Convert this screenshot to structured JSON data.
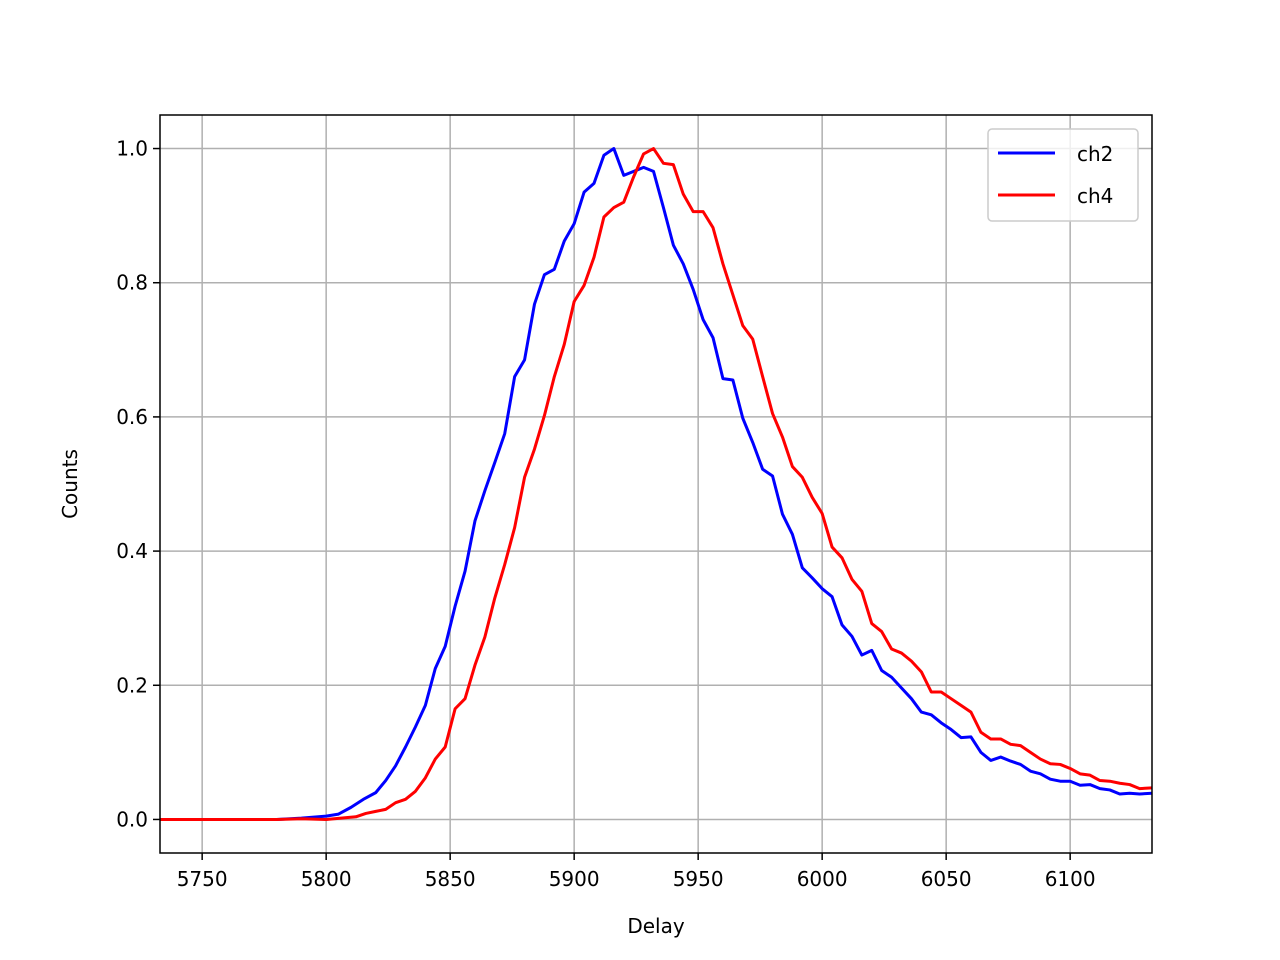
{
  "chart_data": {
    "type": "line",
    "title": "",
    "xlabel": "Delay",
    "ylabel": "Counts",
    "xlim": [
      5733,
      6133
    ],
    "ylim": [
      -0.05,
      1.05
    ],
    "xticks": [
      5750,
      5800,
      5850,
      5900,
      5950,
      6000,
      6050,
      6100
    ],
    "yticks": [
      0.0,
      0.2,
      0.4,
      0.6,
      0.8,
      1.0
    ],
    "xtick_labels": [
      "5750",
      "5800",
      "5850",
      "5900",
      "5950",
      "6000",
      "6050",
      "6100"
    ],
    "ytick_labels": [
      "0.0",
      "0.2",
      "0.4",
      "0.6",
      "0.8",
      "1.0"
    ],
    "grid": true,
    "legend_position": "top-right",
    "series": [
      {
        "name": "ch2",
        "color": "#0000ff",
        "x": [
          5733,
          5740,
          5750,
          5760,
          5770,
          5780,
          5790,
          5800,
          5805,
          5810,
          5815,
          5820,
          5824,
          5828,
          5832,
          5836,
          5840,
          5844,
          5848,
          5852,
          5856,
          5860,
          5864,
          5868,
          5872,
          5876,
          5880,
          5884,
          5888,
          5892,
          5896,
          5900,
          5904,
          5908,
          5912,
          5916,
          5920,
          5924,
          5928,
          5932,
          5936,
          5940,
          5944,
          5948,
          5952,
          5956,
          5960,
          5964,
          5968,
          5972,
          5976,
          5980,
          5984,
          5988,
          5992,
          5996,
          6000,
          6004,
          6008,
          6012,
          6016,
          6020,
          6024,
          6028,
          6032,
          6036,
          6040,
          6044,
          6048,
          6052,
          6056,
          6060,
          6064,
          6068,
          6072,
          6076,
          6080,
          6084,
          6088,
          6092,
          6096,
          6100,
          6104,
          6108,
          6112,
          6116,
          6120,
          6124,
          6128,
          6133
        ],
        "y": [
          0.0,
          0.0,
          0.0,
          0.0,
          0.0,
          0.0,
          0.002,
          0.005,
          0.008,
          0.018,
          0.03,
          0.04,
          0.058,
          0.08,
          0.108,
          0.138,
          0.17,
          0.225,
          0.258,
          0.318,
          0.37,
          0.445,
          0.49,
          0.532,
          0.575,
          0.66,
          0.685,
          0.768,
          0.812,
          0.82,
          0.862,
          0.888,
          0.935,
          0.948,
          0.99,
          1.0,
          0.96,
          0.966,
          0.972,
          0.966,
          0.912,
          0.856,
          0.828,
          0.79,
          0.745,
          0.718,
          0.657,
          0.655,
          0.598,
          0.562,
          0.522,
          0.512,
          0.455,
          0.425,
          0.375,
          0.36,
          0.344,
          0.332,
          0.29,
          0.273,
          0.245,
          0.252,
          0.222,
          0.212,
          0.196,
          0.18,
          0.16,
          0.156,
          0.144,
          0.134,
          0.122,
          0.123,
          0.1,
          0.088,
          0.093,
          0.087,
          0.082,
          0.072,
          0.068,
          0.06,
          0.057,
          0.057,
          0.051,
          0.052,
          0.046,
          0.044,
          0.038,
          0.039,
          0.038,
          0.039
        ]
      },
      {
        "name": "ch4",
        "color": "#ff0000",
        "x": [
          5733,
          5740,
          5750,
          5760,
          5770,
          5780,
          5790,
          5800,
          5806,
          5812,
          5816,
          5820,
          5824,
          5828,
          5832,
          5836,
          5840,
          5844,
          5848,
          5852,
          5856,
          5860,
          5864,
          5868,
          5872,
          5876,
          5880,
          5884,
          5888,
          5892,
          5896,
          5900,
          5904,
          5908,
          5912,
          5916,
          5920,
          5924,
          5928,
          5932,
          5936,
          5940,
          5944,
          5948,
          5952,
          5956,
          5960,
          5964,
          5968,
          5972,
          5976,
          5980,
          5984,
          5988,
          5992,
          5996,
          6000,
          6004,
          6008,
          6012,
          6016,
          6020,
          6024,
          6028,
          6032,
          6036,
          6040,
          6044,
          6048,
          6052,
          6056,
          6060,
          6064,
          6068,
          6072,
          6076,
          6080,
          6084,
          6088,
          6092,
          6096,
          6100,
          6104,
          6108,
          6112,
          6116,
          6120,
          6124,
          6128,
          6133
        ],
        "y": [
          0.0,
          0.0,
          0.0,
          0.0,
          0.0,
          0.0,
          0.001,
          0.0,
          0.002,
          0.004,
          0.009,
          0.012,
          0.015,
          0.025,
          0.03,
          0.042,
          0.062,
          0.09,
          0.108,
          0.165,
          0.18,
          0.23,
          0.272,
          0.33,
          0.38,
          0.435,
          0.51,
          0.552,
          0.602,
          0.66,
          0.708,
          0.772,
          0.796,
          0.838,
          0.898,
          0.912,
          0.92,
          0.958,
          0.992,
          1.0,
          0.978,
          0.976,
          0.932,
          0.906,
          0.906,
          0.882,
          0.828,
          0.782,
          0.736,
          0.716,
          0.66,
          0.605,
          0.57,
          0.526,
          0.51,
          0.48,
          0.456,
          0.406,
          0.39,
          0.358,
          0.34,
          0.292,
          0.28,
          0.254,
          0.248,
          0.236,
          0.22,
          0.19,
          0.19,
          0.18,
          0.17,
          0.16,
          0.13,
          0.12,
          0.12,
          0.112,
          0.11,
          0.1,
          0.09,
          0.083,
          0.082,
          0.076,
          0.068,
          0.066,
          0.058,
          0.057,
          0.054,
          0.052,
          0.046,
          0.047
        ]
      }
    ]
  }
}
